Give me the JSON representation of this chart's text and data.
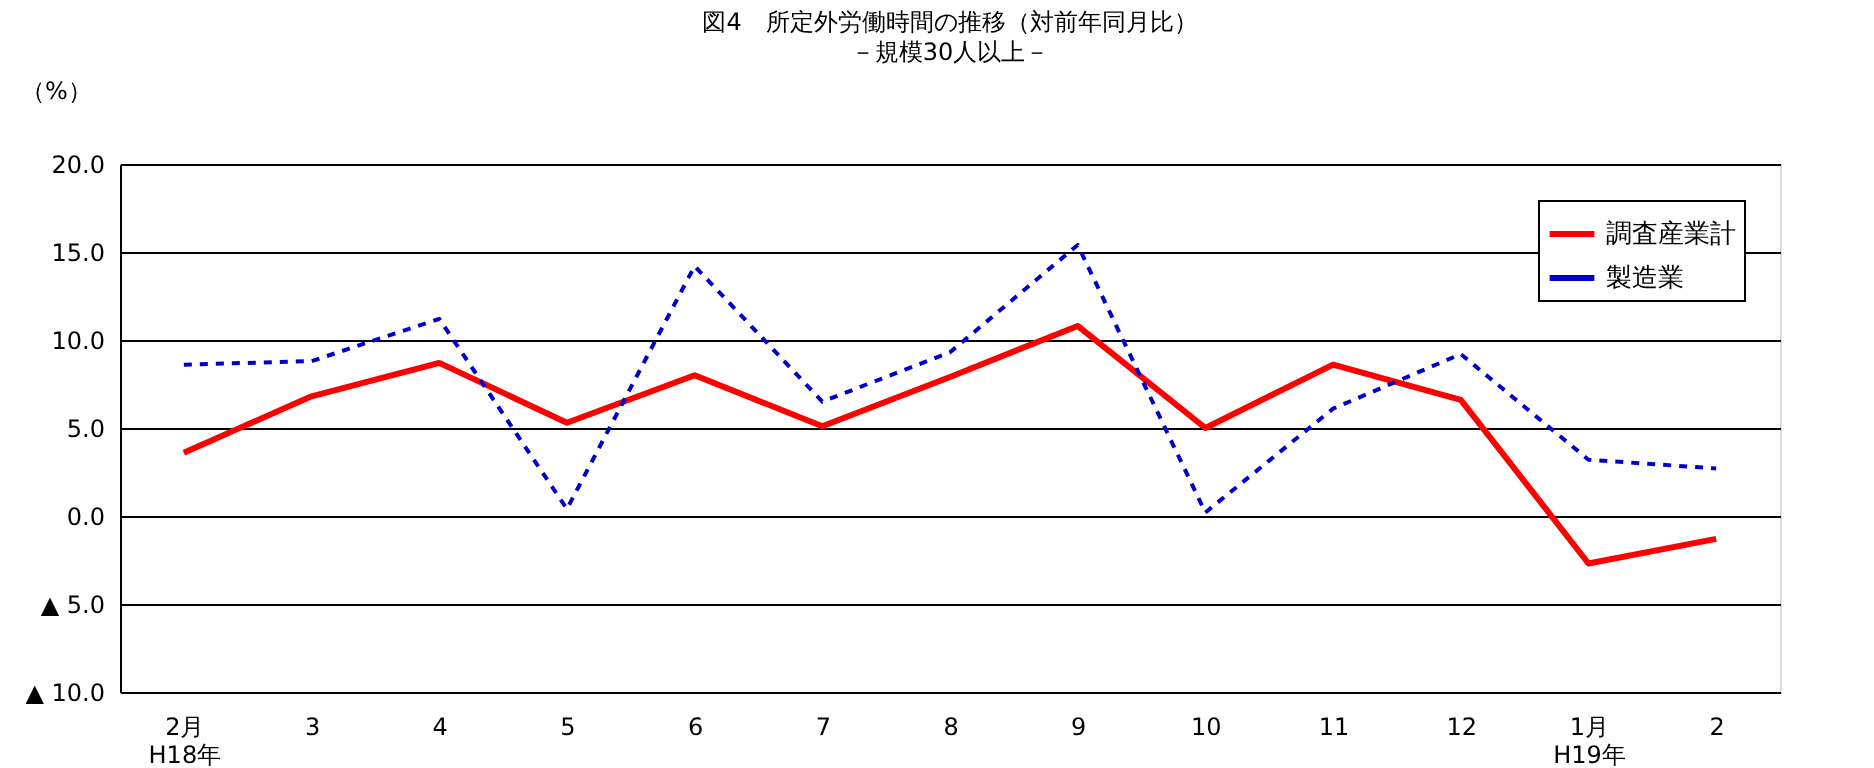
{
  "chart_data": {
    "type": "line",
    "title": "図4　所定外労働時間の推移（対前年同月比）",
    "subtitle": "－規模30人以上－",
    "ylabel": "（%）",
    "categories": [
      "2月\nH18年",
      "3",
      "4",
      "5",
      "6",
      "7",
      "8",
      "9",
      "10",
      "11",
      "12",
      "1月\nH19年",
      "2"
    ],
    "series": [
      {
        "name": "調査産業計",
        "color": "#ff0000",
        "line_style": "solid",
        "values": [
          3.6,
          6.8,
          8.7,
          5.3,
          8.0,
          5.1,
          7.9,
          10.8,
          5.0,
          8.6,
          6.6,
          -2.7,
          -1.3
        ]
      },
      {
        "name": "製造業",
        "color": "#0000cc",
        "line_style": "dotted",
        "values": [
          8.6,
          8.8,
          11.2,
          0.4,
          14.2,
          6.5,
          9.3,
          15.4,
          0.2,
          6.1,
          9.2,
          3.2,
          2.7
        ]
      }
    ],
    "ylim": [
      -10,
      20
    ],
    "yticks": [
      {
        "value": -10,
        "label": "▲ 10.0"
      },
      {
        "value": -5,
        "label": "▲ 5.0"
      },
      {
        "value": 0,
        "label": "0.0"
      },
      {
        "value": 5,
        "label": "5.0"
      },
      {
        "value": 10,
        "label": "10.0"
      },
      {
        "value": 15,
        "label": "15.0"
      },
      {
        "value": 20,
        "label": "20.0"
      }
    ],
    "grid": "y",
    "legend": "top right",
    "marker": "none"
  }
}
